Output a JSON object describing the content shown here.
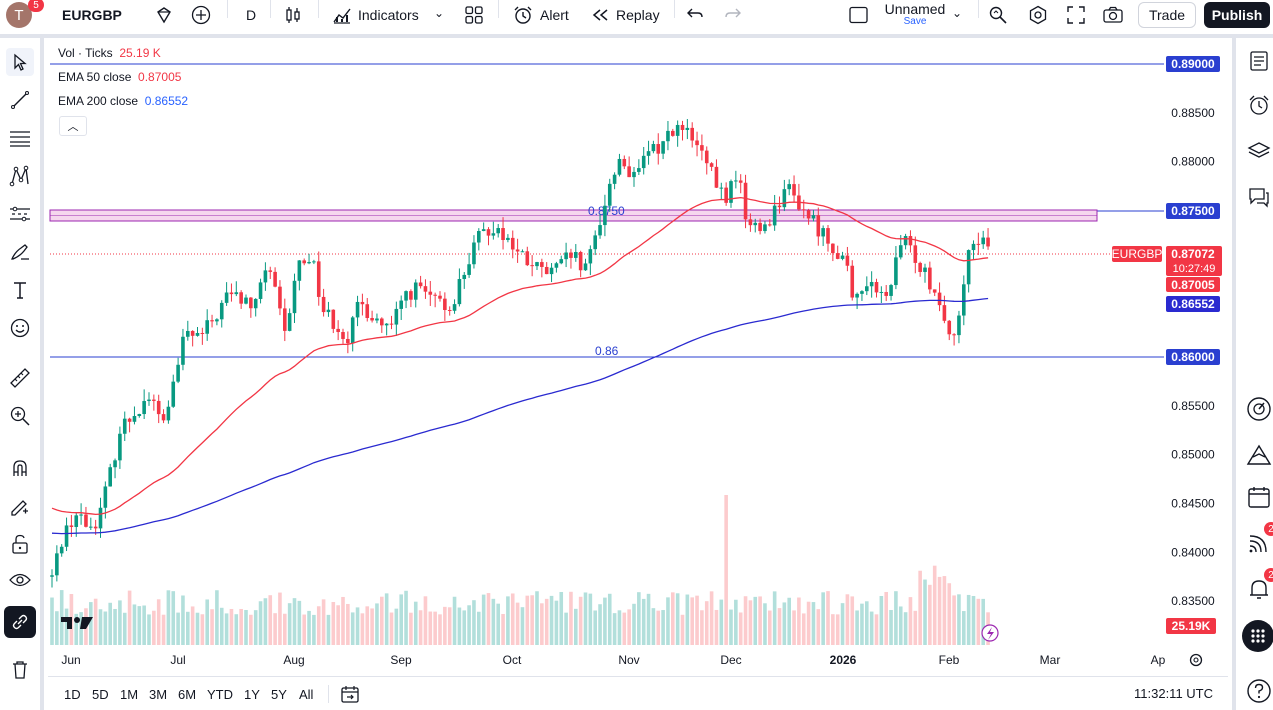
{
  "header": {
    "avatar_letter": "T",
    "avatar_badge": "5",
    "symbol": "EURGBP",
    "interval": "D",
    "indicators_label": "Indicators",
    "alert_label": "Alert",
    "replay_label": "Replay",
    "layout_name": "Unnamed",
    "layout_save": "Save",
    "trade_label": "Trade",
    "publish_label": "Publish"
  },
  "legend": {
    "vol_label": "Vol · Ticks",
    "vol_value": "25.19 K",
    "ema50_label": "EMA 50 close",
    "ema50_value": "0.87005",
    "ema200_label": "EMA 200 close",
    "ema200_value": "0.86552"
  },
  "price_axis": {
    "labels": [
      "0.89000",
      "0.88500",
      "0.88000",
      "0.87500",
      "0.87000",
      "0.86500",
      "0.86000",
      "0.85500",
      "0.85000",
      "0.84500",
      "0.84000",
      "0.83500"
    ],
    "highlighted": {
      "line_0_89": "0.89000",
      "line_0_875": "0.87500",
      "line_0_86": "0.86000",
      "symbol_tag": "EURGBP",
      "last_price": "0.87072",
      "countdown": "10:27:49",
      "ema50": "0.87005",
      "ema200": "0.86552",
      "volume": "25.19K"
    }
  },
  "time_axis": {
    "labels": [
      "Jun",
      "Jul",
      "Aug",
      "Sep",
      "Oct",
      "Nov",
      "Dec",
      "2026",
      "Feb",
      "Mar",
      "Ap"
    ]
  },
  "drawings": {
    "zone_label": "0.8750",
    "line_label": "0.86"
  },
  "bottom": {
    "ranges": [
      "1D",
      "5D",
      "1M",
      "3M",
      "6M",
      "YTD",
      "1Y",
      "5Y",
      "All"
    ],
    "clock": "11:32:11 UTC"
  },
  "right_toolbar": {
    "badge_1": "2",
    "badge_2": "2"
  },
  "colors": {
    "up": "#089981",
    "down": "#f23645",
    "ema50": "#f23645",
    "ema200": "#2a2ad0",
    "hline": "#2a3fd0",
    "zone_fill": "#f5d6ee",
    "zone_border": "#9c27b0"
  },
  "chart_data": {
    "type": "candlestick",
    "title": "EURGBP",
    "ylim": [
      0.8318,
      0.8911
    ],
    "series": [
      {
        "name": "EMA 50 close",
        "last": 0.87005
      },
      {
        "name": "EMA 200 close",
        "last": 0.86552
      }
    ],
    "last_close": 0.87072,
    "annotations": [
      {
        "type": "zone",
        "from": 0.8742,
        "to": 0.8753,
        "label": "0.8750"
      },
      {
        "type": "hline",
        "y": 0.86,
        "label": "0.86"
      },
      {
        "type": "hline",
        "y": 0.89
      }
    ]
  }
}
